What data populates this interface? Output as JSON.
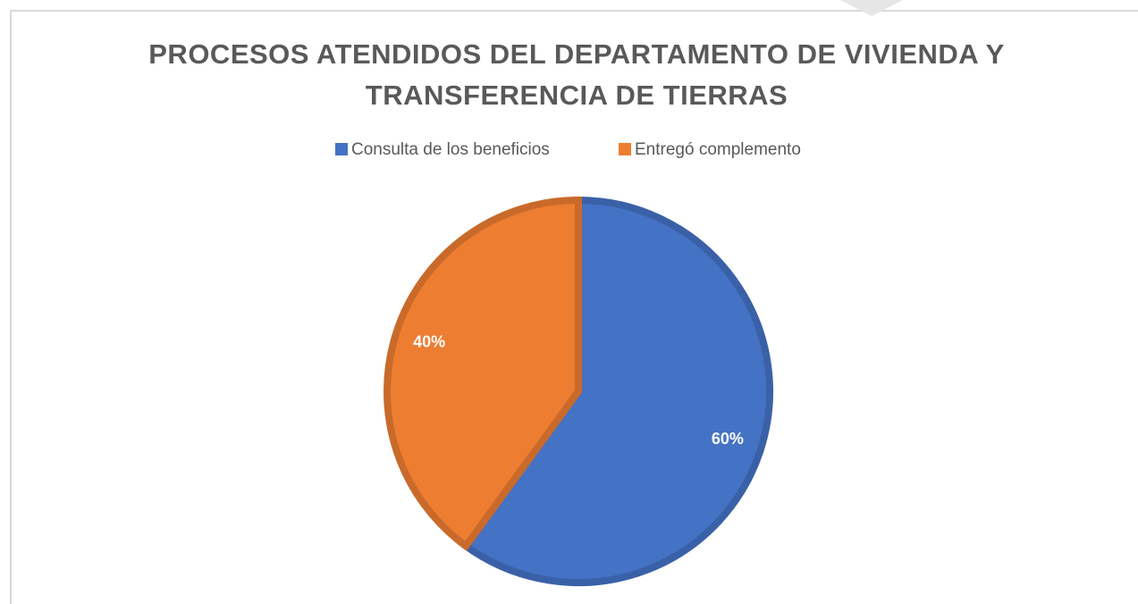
{
  "chart_data": {
    "type": "pie",
    "title": "PROCESOS ATENDIDOS DEL DEPARTAMENTO DE VIVIENDA Y TRANSFERENCIA DE TIERRAS",
    "categories": [
      "Consulta de los beneficios",
      "Entregó complemento"
    ],
    "values": [
      60,
      40
    ],
    "value_labels": [
      "60%",
      "40%"
    ],
    "colors": [
      "#4472c4",
      "#ed7d31"
    ],
    "legend": "top"
  }
}
